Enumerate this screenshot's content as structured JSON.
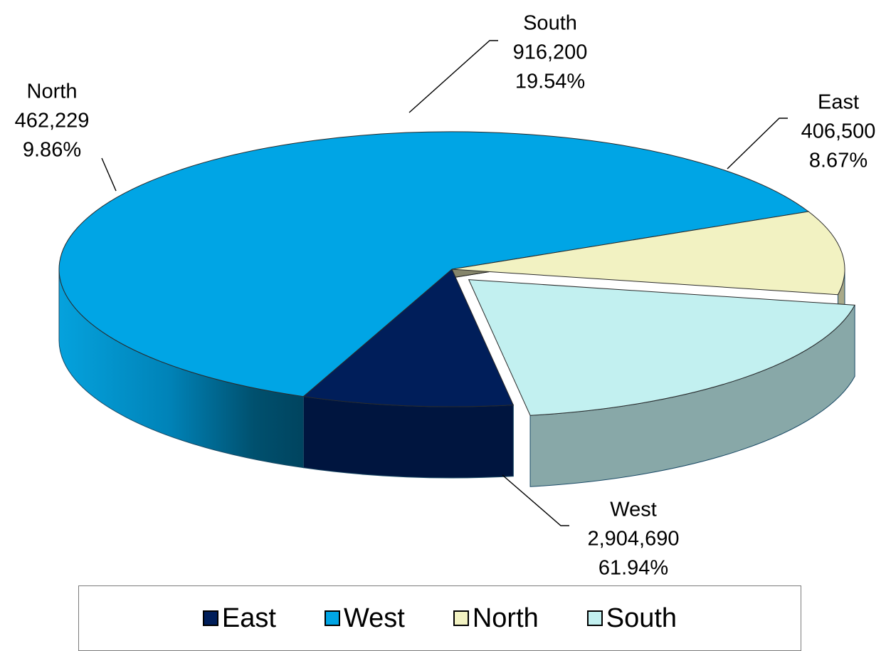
{
  "chart_data": {
    "type": "pie",
    "variant": "3d-exploded",
    "categories": [
      "East",
      "West",
      "North",
      "South"
    ],
    "values": [
      406500,
      2904690,
      462229,
      916200
    ],
    "value_labels": [
      "406,500",
      "2,904,690",
      "462,229",
      "916,200"
    ],
    "percent_labels": [
      "8.67%",
      "61.94%",
      "9.86%",
      "19.54%"
    ],
    "colors": [
      "#001e5a",
      "#00a5e5",
      "#f2f2c2",
      "#c2f0f0"
    ],
    "exploded": [
      "South"
    ],
    "legend_position": "bottom"
  }
}
